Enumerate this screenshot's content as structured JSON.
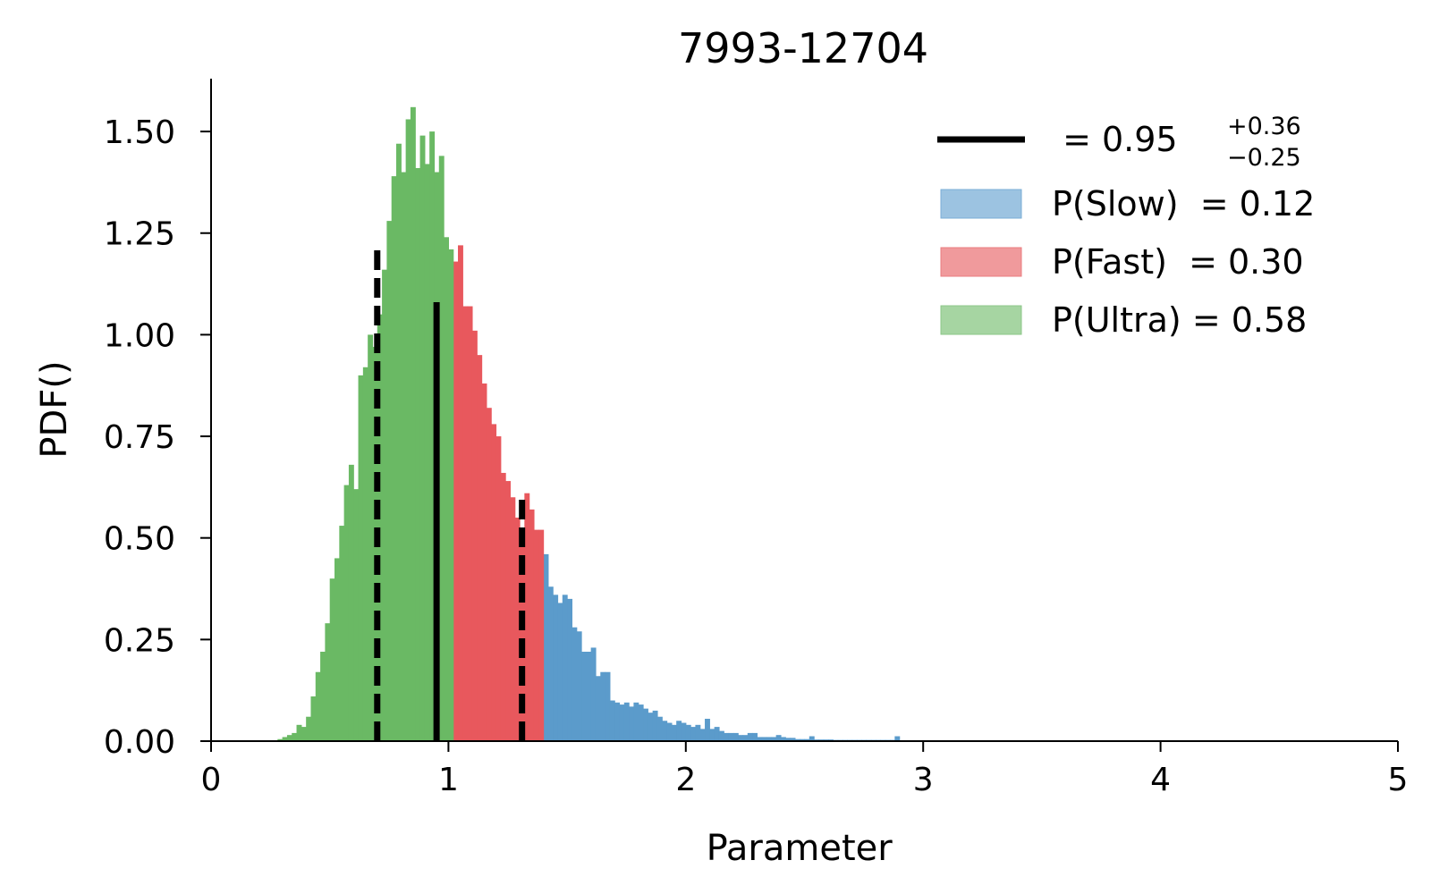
{
  "chart_data": {
    "type": "bar",
    "title": "7993-12704",
    "xlabel": "Parameter 𝒡",
    "ylabel": "PDF(𝒡)",
    "xlim": [
      0,
      5
    ],
    "ylim": [
      0,
      1.63
    ],
    "x_ticks": [
      "0",
      "1",
      "2",
      "3",
      "4",
      "5"
    ],
    "y_ticks": [
      "0.00",
      "0.25",
      "0.50",
      "0.75",
      "1.00",
      "1.25",
      "1.50"
    ],
    "grid": false,
    "legend_position": "top-right",
    "median_line": {
      "x": 0.95,
      "height": 1.08,
      "color": "#000000"
    },
    "lower_line": {
      "x": 0.7,
      "height": 1.21,
      "color": "#000000"
    },
    "upper_line": {
      "x": 1.31,
      "height": 0.6,
      "color": "#000000"
    },
    "legend": {
      "median_text": "𝒡 = 0.95",
      "median_sup": "+0.36",
      "median_sub": "−0.25",
      "slow_text": "P(Slow)  = 0.12",
      "fast_text": "P(Fast)  = 0.30",
      "ultra_text": "P(Ultra) = 0.58"
    },
    "colors": {
      "slow": "#5b9bcb",
      "fast": "#e8585d",
      "ultra": "#6ab964",
      "slow_legend": "#9cc3e1",
      "fast_legend": "#f09a9c",
      "ultra_legend": "#a6d5a2"
    },
    "series": [
      {
        "name": "P(Slow)  = 0.12",
        "bin_width": 0.02,
        "x": [
          1.4,
          1.42,
          1.44,
          1.46,
          1.48,
          1.5,
          1.52,
          1.54,
          1.56,
          1.58,
          1.6,
          1.62,
          1.64,
          1.66,
          1.68,
          1.7,
          1.72,
          1.74,
          1.76,
          1.78,
          1.8,
          1.82,
          1.84,
          1.86,
          1.88,
          1.9,
          1.92,
          1.94,
          1.96,
          1.98,
          2.0,
          2.02,
          2.04,
          2.06,
          2.08,
          2.1,
          2.12,
          2.14,
          2.16,
          2.18,
          2.2,
          2.22,
          2.24,
          2.26,
          2.28,
          2.3,
          2.32,
          2.34,
          2.36,
          2.38,
          2.4,
          2.42,
          2.44,
          2.46,
          2.48,
          2.5,
          2.52,
          2.54,
          2.56,
          2.58,
          2.6,
          2.62,
          2.64,
          2.66,
          2.68,
          2.7,
          2.72,
          2.74,
          2.76,
          2.78,
          2.8,
          2.82,
          2.84,
          2.86,
          2.88
        ],
        "values": [
          0.46,
          0.38,
          0.36,
          0.34,
          0.36,
          0.35,
          0.28,
          0.27,
          0.22,
          0.22,
          0.23,
          0.16,
          0.17,
          0.17,
          0.1,
          0.095,
          0.09,
          0.095,
          0.085,
          0.095,
          0.09,
          0.08,
          0.07,
          0.075,
          0.06,
          0.05,
          0.045,
          0.04,
          0.05,
          0.045,
          0.04,
          0.035,
          0.04,
          0.03,
          0.055,
          0.03,
          0.035,
          0.025,
          0.02,
          0.02,
          0.02,
          0.015,
          0.015,
          0.02,
          0.02,
          0.01,
          0.01,
          0.01,
          0.01,
          0.015,
          0.01,
          0.008,
          0.008,
          0.005,
          0.005,
          0.005,
          0.012,
          0.004,
          0.004,
          0.004,
          0.004,
          0.003,
          0.003,
          0.003,
          0.003,
          0.003,
          0.003,
          0.003,
          0.003,
          0.003,
          0.003,
          0.003,
          0.003,
          0.003,
          0.012
        ]
      },
      {
        "name": "P(Fast)  = 0.30",
        "bin_width": 0.02,
        "x": [
          1.02,
          1.04,
          1.06,
          1.08,
          1.1,
          1.12,
          1.14,
          1.16,
          1.18,
          1.2,
          1.22,
          1.24,
          1.26,
          1.28,
          1.3,
          1.32,
          1.34,
          1.36,
          1.38
        ],
        "values": [
          1.18,
          1.22,
          1.07,
          1.07,
          1.01,
          0.95,
          0.88,
          0.82,
          0.78,
          0.75,
          0.66,
          0.64,
          0.6,
          0.55,
          0.52,
          0.61,
          0.57,
          0.52,
          0.52
        ]
      },
      {
        "name": "P(Ultra) = 0.58",
        "bin_width": 0.02,
        "x": [
          0.28,
          0.3,
          0.32,
          0.34,
          0.36,
          0.38,
          0.4,
          0.42,
          0.44,
          0.46,
          0.48,
          0.5,
          0.52,
          0.54,
          0.56,
          0.58,
          0.6,
          0.62,
          0.64,
          0.66,
          0.68,
          0.7,
          0.72,
          0.74,
          0.76,
          0.78,
          0.8,
          0.82,
          0.84,
          0.86,
          0.88,
          0.9,
          0.92,
          0.94,
          0.96,
          0.98,
          1.0
        ],
        "values": [
          0.005,
          0.01,
          0.015,
          0.02,
          0.04,
          0.035,
          0.06,
          0.11,
          0.17,
          0.22,
          0.29,
          0.4,
          0.45,
          0.53,
          0.63,
          0.68,
          0.62,
          0.9,
          0.92,
          1.0,
          0.97,
          1.05,
          1.16,
          1.28,
          1.39,
          1.47,
          1.4,
          1.53,
          1.56,
          1.41,
          1.49,
          1.42,
          1.5,
          1.4,
          1.44,
          1.24,
          1.21
        ]
      }
    ]
  }
}
